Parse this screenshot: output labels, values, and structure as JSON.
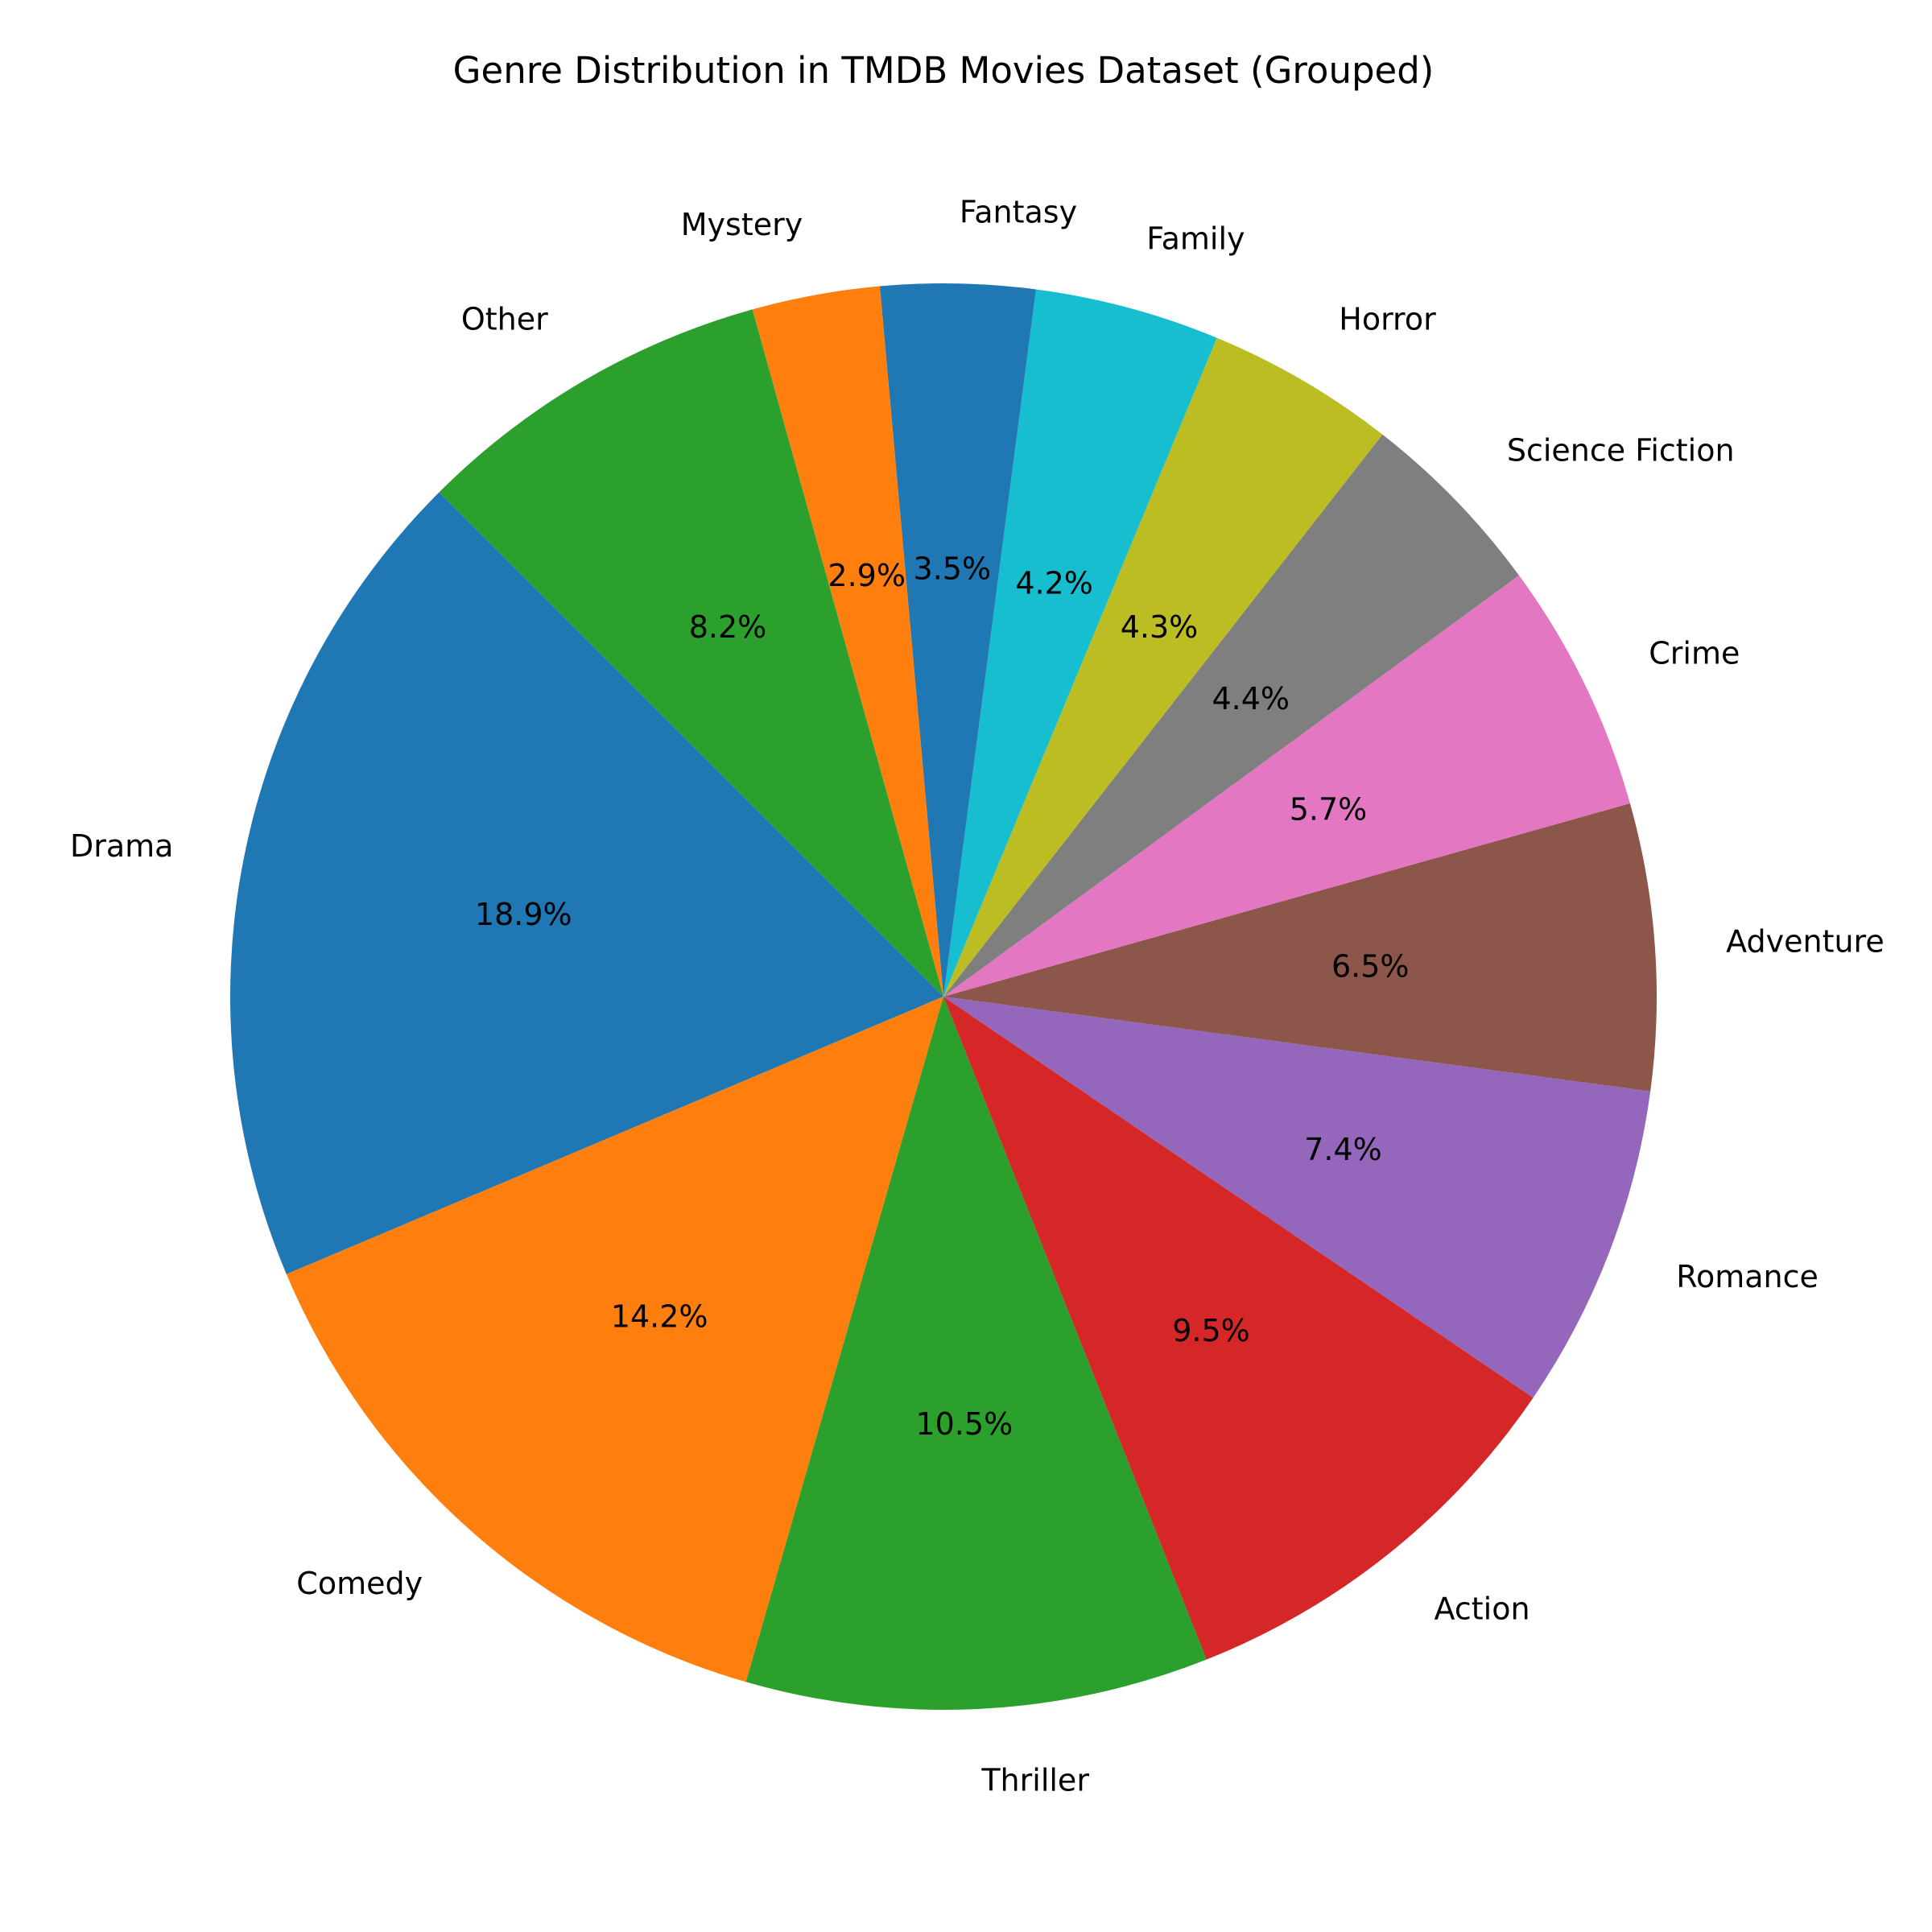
{
  "chart_data": {
    "type": "pie",
    "title": "Genre Distribution in TMDB Movies Dataset (Grouped)",
    "start_angle_deg": 135,
    "direction": "counterclockwise",
    "slices": [
      {
        "label": "Drama",
        "value": 18.9,
        "pct_label": "18.9%",
        "color": "#1f77b4"
      },
      {
        "label": "Comedy",
        "value": 14.2,
        "pct_label": "14.2%",
        "color": "#ff7f0e"
      },
      {
        "label": "Thriller",
        "value": 10.5,
        "pct_label": "10.5%",
        "color": "#2ca02c"
      },
      {
        "label": "Action",
        "value": 9.5,
        "pct_label": "9.5%",
        "color": "#d62728"
      },
      {
        "label": "Romance",
        "value": 7.4,
        "pct_label": "7.4%",
        "color": "#9467bd"
      },
      {
        "label": "Adventure",
        "value": 6.5,
        "pct_label": "6.5%",
        "color": "#8c564b"
      },
      {
        "label": "Crime",
        "value": 5.7,
        "pct_label": "5.7%",
        "color": "#e377c2"
      },
      {
        "label": "Science Fiction",
        "value": 4.4,
        "pct_label": "4.4%",
        "color": "#7f7f7f"
      },
      {
        "label": "Horror",
        "value": 4.3,
        "pct_label": "4.3%",
        "color": "#bcbd22"
      },
      {
        "label": "Family",
        "value": 4.2,
        "pct_label": "4.2%",
        "color": "#17becf"
      },
      {
        "label": "Fantasy",
        "value": 3.5,
        "pct_label": "3.5%",
        "color": "#1f77b4"
      },
      {
        "label": "Mystery",
        "value": 2.9,
        "pct_label": "2.9%",
        "color": "#ff7f0e"
      },
      {
        "label": "Other",
        "value": 8.2,
        "pct_label": "8.2%",
        "color": "#2ca02c"
      }
    ]
  }
}
